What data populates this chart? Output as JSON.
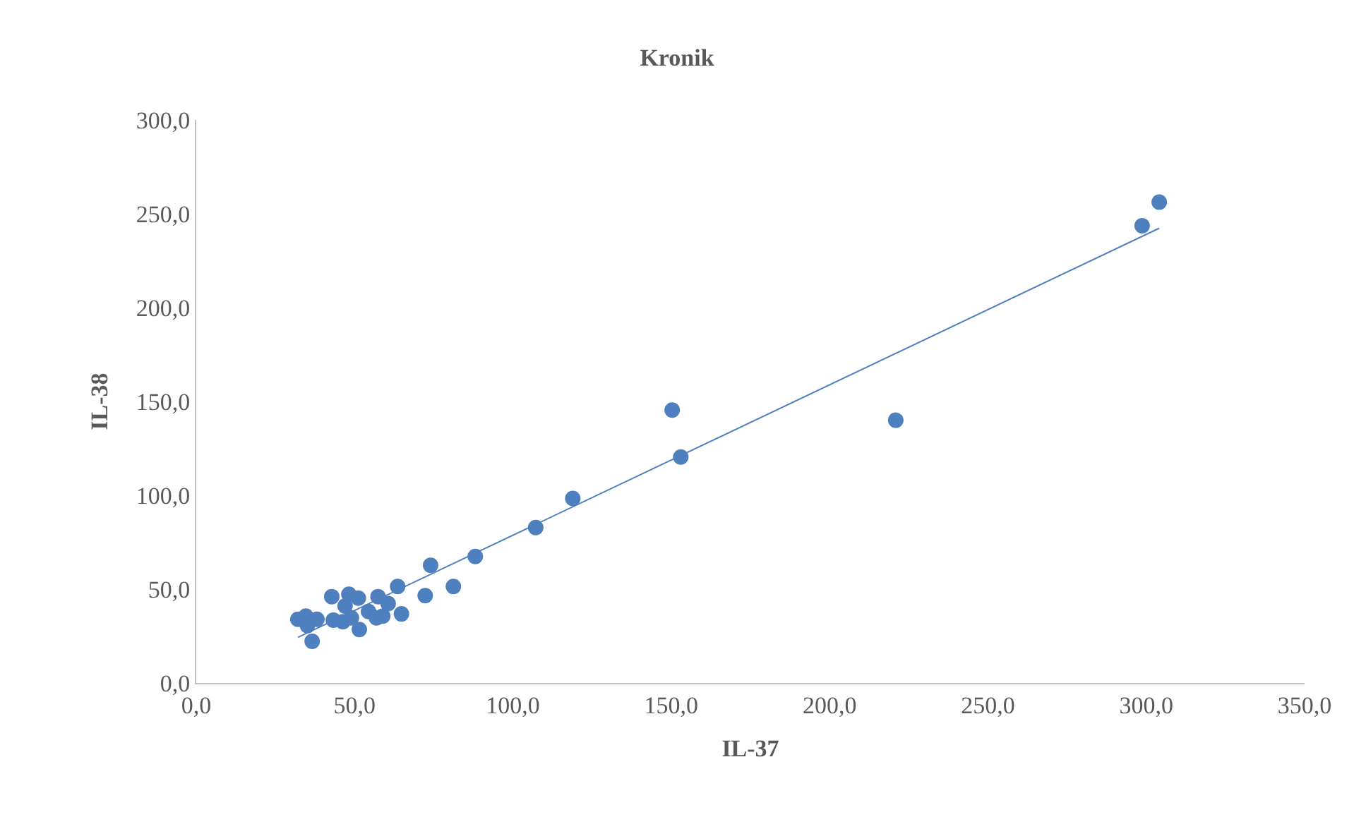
{
  "chart_data": {
    "type": "scatter",
    "title": "Kronik",
    "xlabel": "IL-37",
    "ylabel": "IL-38",
    "xlim": [
      0,
      350
    ],
    "ylim": [
      0,
      300
    ],
    "xticks": [
      {
        "value": 0,
        "label": "0,0"
      },
      {
        "value": 50,
        "label": "50,0"
      },
      {
        "value": 100,
        "label": "100,0"
      },
      {
        "value": 150,
        "label": "150,0"
      },
      {
        "value": 200,
        "label": "200,0"
      },
      {
        "value": 250,
        "label": "250,0"
      },
      {
        "value": 300,
        "label": "300,0"
      },
      {
        "value": 350,
        "label": "350,0"
      }
    ],
    "yticks": [
      {
        "value": 0,
        "label": "0,0"
      },
      {
        "value": 50,
        "label": "50,0"
      },
      {
        "value": 100,
        "label": "100,0"
      },
      {
        "value": 150,
        "label": "150,0"
      },
      {
        "value": 200,
        "label": "200,0"
      },
      {
        "value": 250,
        "label": "250,0"
      },
      {
        "value": 300,
        "label": "300,0"
      }
    ],
    "series": [
      {
        "color": "#4e7fbf",
        "marker": "circle",
        "x": [
          32.1,
          34.6,
          36.6,
          35.1,
          38.1,
          42.8,
          43.3,
          46.3,
          48.2,
          51.2,
          47.0,
          51.5,
          49.0,
          54.4,
          57.4,
          56.9,
          58.9,
          60.6,
          63.6,
          64.8,
          72.3,
          74.0,
          81.2,
          88.1,
          107.2,
          118.9,
          150.3,
          153.0,
          220.9,
          298.7,
          304.1
        ],
        "values": [
          33.9,
          35.6,
          22.2,
          30.6,
          33.9,
          46.0,
          33.5,
          32.6,
          47.3,
          45.2,
          41.0,
          28.5,
          34.7,
          38.1,
          46.0,
          34.7,
          35.6,
          42.3,
          51.4,
          36.8,
          46.5,
          62.7,
          51.4,
          67.4,
          82.8,
          98.3,
          145.4,
          120.4,
          140.0,
          243.6,
          256.2
        ]
      },
      {
        "type": "line",
        "color": "#4e7fbf",
        "x": [
          32.1,
          304.1
        ],
        "values": [
          24.3,
          242.3
        ]
      }
    ]
  }
}
